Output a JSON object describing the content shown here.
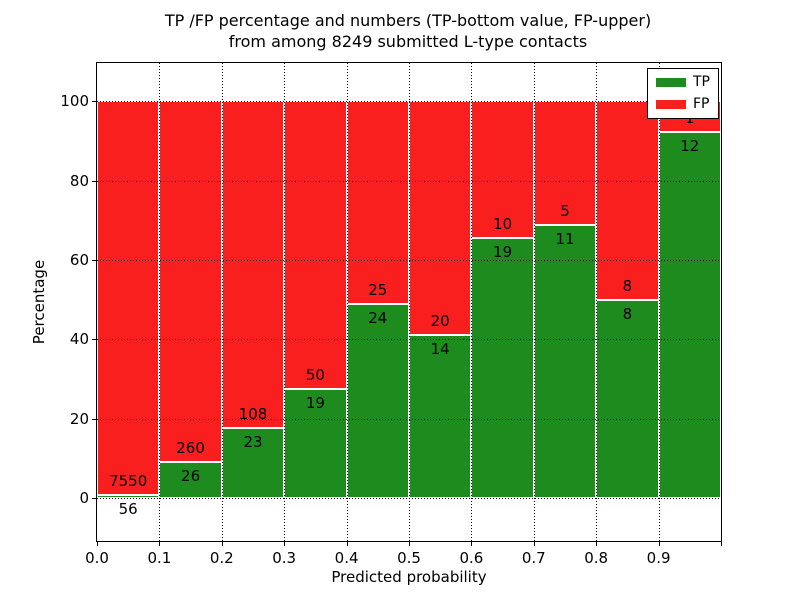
{
  "chart_data": {
    "type": "bar",
    "subtype": "stacked-percentage",
    "title": {
      "line1": "TP /FP percentage and numbers (TP-bottom value, FP-upper)",
      "line2": "from among 8249 submitted L-type contacts"
    },
    "xlabel": "Predicted probability",
    "ylabel": "Percentage",
    "categories": [
      "0.0-0.1",
      "0.1-0.2",
      "0.2-0.3",
      "0.3-0.4",
      "0.4-0.5",
      "0.5-0.6",
      "0.6-0.7",
      "0.7-0.8",
      "0.8-0.9",
      "0.9-1.0"
    ],
    "series": [
      {
        "name": "TP",
        "color": "#1e8b1e",
        "values": [
          56,
          26,
          23,
          19,
          24,
          14,
          19,
          11,
          8,
          12
        ]
      },
      {
        "name": "FP",
        "color": "#f91f1f",
        "values": [
          7550,
          260,
          108,
          50,
          25,
          20,
          10,
          5,
          8,
          1
        ]
      }
    ],
    "bar_edge_color": "#ffffff",
    "annotation_note": "TP count below each stack boundary, FP count above it",
    "xlim": [
      0,
      1
    ],
    "ylim": [
      -10.8,
      109.6
    ],
    "bin_width": 0.1,
    "x_ticks": {
      "values": [
        0,
        0.1,
        0.2,
        0.3,
        0.4,
        0.5,
        0.6,
        0.7,
        0.8,
        0.9,
        1.0
      ],
      "labels": [
        "0.0",
        "0.1",
        "0.2",
        "0.3",
        "0.4",
        "0.5",
        "0.6",
        "0.7",
        "0.8",
        "0.9",
        ""
      ]
    },
    "y_ticks": {
      "values": [
        0,
        20,
        40,
        60,
        80,
        100
      ],
      "labels": [
        "0",
        "20",
        "40",
        "60",
        "80",
        "100"
      ]
    },
    "grid": "dotted-black-both-axes",
    "legend_position": "upper-right"
  }
}
